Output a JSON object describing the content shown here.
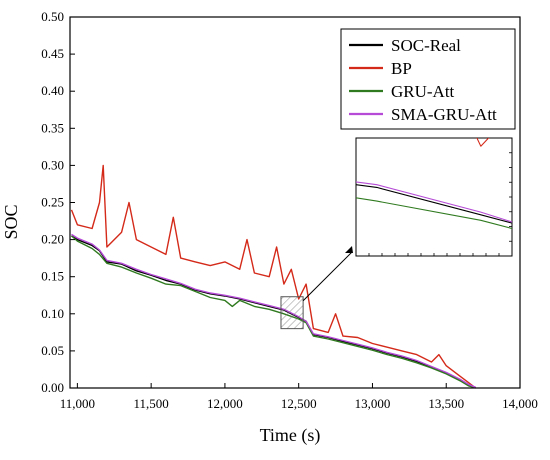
{
  "chart_data": {
    "type": "line",
    "title": "",
    "xlabel": "Time (s)",
    "ylabel": "SOC",
    "xlim": [
      10950,
      14000
    ],
    "ylim": [
      0,
      0.5
    ],
    "x_ticks": [
      11000,
      11500,
      12000,
      12500,
      13000,
      13500,
      14000
    ],
    "x_tick_labels": [
      "11,000",
      "11,500",
      "12,000",
      "12,500",
      "13,000",
      "13,500",
      "14,000"
    ],
    "y_ticks": [
      0,
      0.05,
      0.1,
      0.15,
      0.2,
      0.25,
      0.3,
      0.35,
      0.4,
      0.45,
      0.5
    ],
    "y_tick_labels": [
      "0.00",
      "0.05",
      "0.10",
      "0.15",
      "0.20",
      "0.25",
      "0.30",
      "0.35",
      "0.40",
      "0.45",
      "0.50"
    ],
    "grid": false,
    "legend_position": "top-right",
    "series": [
      {
        "name": "SOC-Real",
        "color": "#000000",
        "x": [
          10960,
          11000,
          11100,
          11150,
          11200,
          11300,
          11400,
          11500,
          11600,
          11700,
          11800,
          11900,
          12000,
          12100,
          12200,
          12300,
          12400,
          12500,
          12550,
          12600,
          12700,
          12800,
          12900,
          13000,
          13100,
          13200,
          13300,
          13400,
          13500,
          13600,
          13650,
          13700
        ],
        "y": [
          0.205,
          0.2,
          0.192,
          0.185,
          0.17,
          0.167,
          0.158,
          0.152,
          0.145,
          0.14,
          0.132,
          0.127,
          0.124,
          0.12,
          0.115,
          0.11,
          0.105,
          0.095,
          0.09,
          0.072,
          0.068,
          0.063,
          0.058,
          0.053,
          0.047,
          0.042,
          0.036,
          0.028,
          0.02,
          0.01,
          0.004,
          0.0
        ]
      },
      {
        "name": "BP",
        "color": "#d42a1a",
        "x": [
          10960,
          11000,
          11100,
          11150,
          11175,
          11200,
          11300,
          11350,
          11400,
          11500,
          11600,
          11650,
          11700,
          11800,
          11900,
          12000,
          12100,
          12150,
          12200,
          12300,
          12350,
          12400,
          12450,
          12500,
          12550,
          12600,
          12700,
          12750,
          12800,
          12900,
          13000,
          13100,
          13200,
          13300,
          13400,
          13450,
          13500,
          13600,
          13700
        ],
        "y": [
          0.24,
          0.22,
          0.215,
          0.25,
          0.3,
          0.19,
          0.21,
          0.25,
          0.2,
          0.19,
          0.18,
          0.23,
          0.175,
          0.17,
          0.165,
          0.17,
          0.16,
          0.2,
          0.155,
          0.15,
          0.19,
          0.14,
          0.16,
          0.12,
          0.14,
          0.08,
          0.075,
          0.1,
          0.07,
          0.068,
          0.06,
          0.055,
          0.05,
          0.045,
          0.035,
          0.045,
          0.03,
          0.015,
          0.0
        ]
      },
      {
        "name": "GRU-Att",
        "color": "#2f7a1f",
        "x": [
          10960,
          11000,
          11100,
          11150,
          11200,
          11300,
          11400,
          11500,
          11600,
          11700,
          11800,
          11900,
          12000,
          12050,
          12100,
          12200,
          12300,
          12400,
          12500,
          12550,
          12600,
          12700,
          12800,
          12900,
          13000,
          13100,
          13200,
          13300,
          13400,
          13500,
          13600,
          13650,
          13700
        ],
        "y": [
          0.205,
          0.198,
          0.188,
          0.18,
          0.168,
          0.163,
          0.155,
          0.148,
          0.14,
          0.138,
          0.13,
          0.122,
          0.118,
          0.11,
          0.118,
          0.11,
          0.106,
          0.1,
          0.093,
          0.088,
          0.07,
          0.066,
          0.061,
          0.056,
          0.051,
          0.045,
          0.04,
          0.034,
          0.027,
          0.019,
          0.009,
          0.003,
          0.0
        ]
      },
      {
        "name": "SMA-GRU-Att",
        "color": "#b54bd6",
        "x": [
          10960,
          11000,
          11100,
          11150,
          11200,
          11300,
          11400,
          11500,
          11600,
          11700,
          11800,
          11900,
          12000,
          12100,
          12200,
          12300,
          12400,
          12500,
          12550,
          12600,
          12700,
          12800,
          12900,
          13000,
          13100,
          13200,
          13300,
          13400,
          13500,
          13600,
          13650,
          13700
        ],
        "y": [
          0.207,
          0.202,
          0.194,
          0.186,
          0.172,
          0.168,
          0.16,
          0.153,
          0.147,
          0.141,
          0.133,
          0.128,
          0.125,
          0.121,
          0.116,
          0.111,
          0.106,
          0.096,
          0.09,
          0.073,
          0.069,
          0.064,
          0.059,
          0.054,
          0.048,
          0.043,
          0.037,
          0.029,
          0.021,
          0.011,
          0.005,
          0.001
        ]
      }
    ],
    "zoom_region": {
      "x": [
        12380,
        12530
      ],
      "y": [
        0.08,
        0.123
      ]
    }
  }
}
